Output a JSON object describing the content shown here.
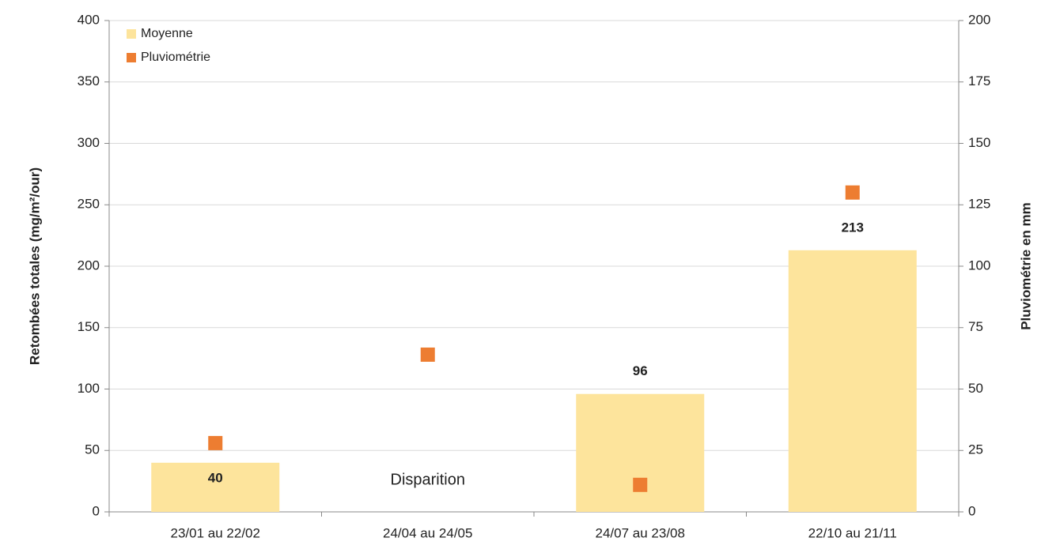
{
  "chart_data": {
    "type": "bar",
    "categories": [
      "23/01 au 22/02",
      "24/04 au 24/05",
      "24/07 au 23/08",
      "22/10 au 21/11"
    ],
    "series": [
      {
        "name": "Moyenne",
        "type": "bar",
        "color": "#fde49c",
        "values": [
          40,
          null,
          96,
          213
        ]
      },
      {
        "name": "Pluviométrie",
        "type": "scatter",
        "axis": "y2",
        "color": "#ed7d31",
        "values": [
          28,
          64,
          11,
          130
        ]
      }
    ],
    "ylabel": "Retombées totales (mg/m²/our)",
    "y2label": "Pluviométrie en mm",
    "ylim": [
      0,
      400
    ],
    "yticks": [
      0,
      50,
      100,
      150,
      200,
      250,
      300,
      350,
      400
    ],
    "y2lim": [
      0,
      200
    ],
    "y2ticks": [
      0,
      25,
      50,
      75,
      100,
      125,
      150,
      175,
      200
    ],
    "annotations": [
      {
        "text": "Disparition",
        "x": "24/04 au 24/05"
      }
    ],
    "grid": true,
    "legend": "upper left"
  }
}
